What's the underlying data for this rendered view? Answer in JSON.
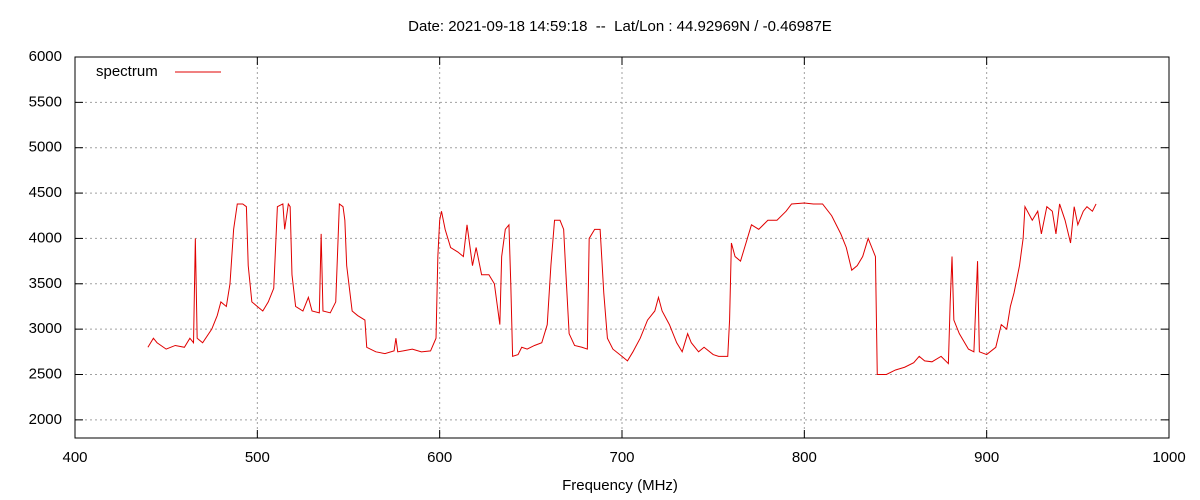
{
  "chart_data": {
    "type": "line",
    "title": "Date: 2021-09-18 14:59:18  --  Lat/Lon : 44.92969N / -0.46987E",
    "xlabel": "Frequency (MHz)",
    "xlim": [
      400,
      1000
    ],
    "xticks": [
      400,
      500,
      600,
      700,
      800,
      900,
      1000
    ],
    "ylim": [
      1800,
      6000
    ],
    "yticks": [
      2000,
      2500,
      3000,
      3500,
      4000,
      4500,
      5000,
      5500,
      6000
    ],
    "grid": true,
    "legend": "upper left",
    "series": [
      {
        "name": "spectrum",
        "color": "#e00000",
        "x": [
          440,
          443,
          445,
          450,
          455,
          460,
          463,
          465,
          466,
          467,
          470,
          475,
          478,
          480,
          483,
          485,
          487,
          489,
          492,
          494,
          495,
          497,
          500,
          503,
          506,
          509,
          511,
          514,
          515,
          517,
          518,
          519,
          521,
          525,
          528,
          530,
          534,
          535,
          536,
          540,
          543,
          545,
          547,
          548,
          549,
          552,
          555,
          559,
          560,
          565,
          570,
          575,
          576,
          577,
          580,
          585,
          590,
          595,
          598,
          599,
          600,
          601,
          603,
          606,
          610,
          613,
          615,
          618,
          620,
          623,
          627,
          630,
          633,
          634,
          636,
          638,
          639,
          640,
          643,
          645,
          648,
          652,
          656,
          659,
          661,
          663,
          666,
          668,
          669,
          671,
          674,
          678,
          681,
          682,
          685,
          688,
          690,
          692,
          695,
          700,
          703,
          706,
          710,
          714,
          718,
          720,
          722,
          726,
          730,
          733,
          736,
          738,
          742,
          745,
          750,
          753,
          758,
          759,
          760,
          762,
          765,
          768,
          771,
          775,
          780,
          785,
          790,
          793,
          800,
          805,
          810,
          815,
          820,
          823,
          826,
          829,
          832,
          835,
          837,
          839,
          840,
          845,
          850,
          855,
          860,
          863,
          866,
          870,
          875,
          879,
          880,
          881,
          882,
          885,
          890,
          893,
          895,
          896,
          900,
          905,
          908,
          911,
          913,
          915,
          918,
          920,
          921,
          925,
          928,
          930,
          933,
          936,
          938,
          940,
          943,
          946,
          948,
          950,
          953,
          955,
          958,
          960
        ],
        "values": [
          2800,
          2900,
          2850,
          2780,
          2820,
          2800,
          2900,
          2850,
          4000,
          2900,
          2850,
          3000,
          3150,
          3300,
          3250,
          3500,
          4100,
          4380,
          4380,
          4350,
          3700,
          3300,
          3250,
          3200,
          3300,
          3450,
          4350,
          4380,
          4100,
          4380,
          4350,
          3600,
          3250,
          3200,
          3350,
          3200,
          3180,
          4050,
          3200,
          3180,
          3300,
          4380,
          4350,
          4200,
          3700,
          3200,
          3150,
          3100,
          2800,
          2750,
          2730,
          2760,
          2900,
          2750,
          2760,
          2780,
          2750,
          2760,
          2900,
          3800,
          4200,
          4300,
          4100,
          3900,
          3850,
          3800,
          4150,
          3700,
          3900,
          3600,
          3600,
          3500,
          3050,
          3800,
          4100,
          4150,
          3500,
          2700,
          2720,
          2800,
          2780,
          2820,
          2850,
          3050,
          3700,
          4200,
          4200,
          4100,
          3700,
          2950,
          2820,
          2800,
          2780,
          4000,
          4100,
          4100,
          3400,
          2900,
          2780,
          2700,
          2650,
          2750,
          2900,
          3100,
          3200,
          3350,
          3200,
          3050,
          2850,
          2750,
          2950,
          2850,
          2750,
          2800,
          2720,
          2700,
          2700,
          3100,
          3950,
          3800,
          3750,
          3950,
          4150,
          4100,
          4200,
          4200,
          4300,
          4380,
          4390,
          4380,
          4380,
          4250,
          4050,
          3900,
          3650,
          3700,
          3800,
          4000,
          3900,
          3800,
          2500,
          2500,
          2550,
          2580,
          2630,
          2700,
          2650,
          2640,
          2700,
          2620,
          3300,
          3800,
          3100,
          2950,
          2780,
          2750,
          3750,
          2750,
          2720,
          2800,
          3050,
          3000,
          3250,
          3400,
          3700,
          4000,
          4350,
          4200,
          4300,
          4050,
          4350,
          4300,
          4050,
          4380,
          4200,
          3950,
          4350,
          4150,
          4300,
          4350,
          4300,
          4380
        ]
      }
    ]
  }
}
